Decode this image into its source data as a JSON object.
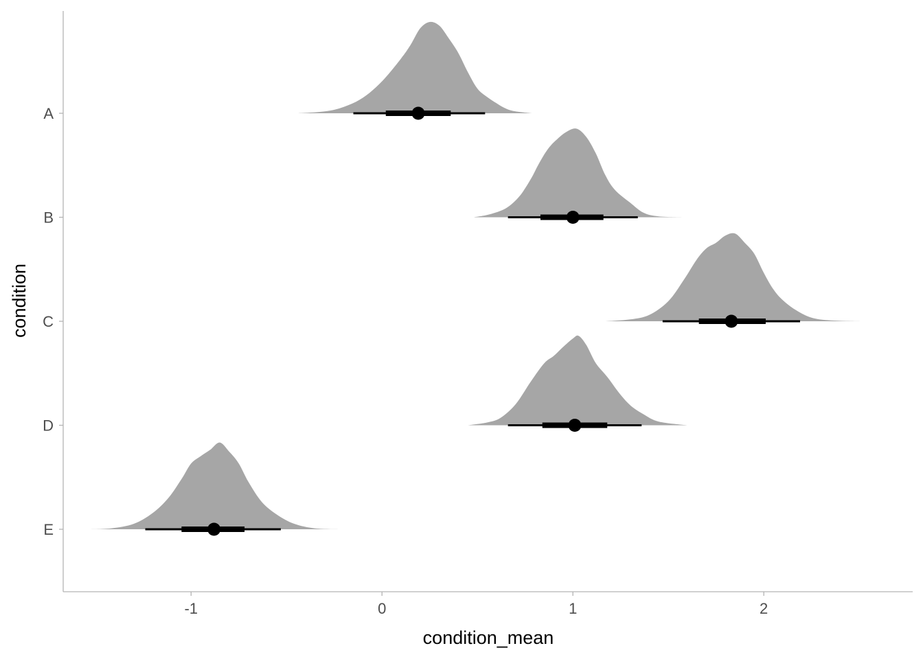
{
  "chart_data": {
    "type": "halfeye",
    "title": "",
    "xlabel": "condition_mean",
    "ylabel": "condition",
    "xlim": [
      -1.67,
      2.78
    ],
    "x_ticks": [
      -1,
      0,
      1,
      2
    ],
    "x_tick_labels": [
      "-1",
      "0",
      "1",
      "2"
    ],
    "categories": [
      "A",
      "B",
      "C",
      "D",
      "E"
    ],
    "grid": false,
    "legend": "none",
    "fill_color": "#a6a6a6",
    "interval_color": "#000000",
    "series": [
      {
        "category": "A",
        "point": 0.19,
        "interval_66": [
          0.02,
          0.36
        ],
        "interval_95": [
          -0.15,
          0.54
        ],
        "density": [
          [
            -0.44,
            0.0
          ],
          [
            -0.3,
            0.02
          ],
          [
            -0.2,
            0.07
          ],
          [
            -0.1,
            0.17
          ],
          [
            0.0,
            0.35
          ],
          [
            0.1,
            0.6
          ],
          [
            0.15,
            0.75
          ],
          [
            0.2,
            0.93
          ],
          [
            0.25,
            1.0
          ],
          [
            0.3,
            0.96
          ],
          [
            0.35,
            0.82
          ],
          [
            0.4,
            0.66
          ],
          [
            0.45,
            0.45
          ],
          [
            0.5,
            0.27
          ],
          [
            0.55,
            0.18
          ],
          [
            0.6,
            0.11
          ],
          [
            0.65,
            0.05
          ],
          [
            0.7,
            0.02
          ],
          [
            0.79,
            0.0
          ]
        ]
      },
      {
        "category": "B",
        "point": 1.0,
        "interval_66": [
          0.83,
          1.16
        ],
        "interval_95": [
          0.66,
          1.34
        ],
        "density": [
          [
            0.48,
            0.0
          ],
          [
            0.56,
            0.03
          ],
          [
            0.65,
            0.1
          ],
          [
            0.72,
            0.23
          ],
          [
            0.78,
            0.42
          ],
          [
            0.82,
            0.58
          ],
          [
            0.87,
            0.75
          ],
          [
            0.92,
            0.86
          ],
          [
            0.97,
            0.94
          ],
          [
            1.02,
            0.97
          ],
          [
            1.07,
            0.88
          ],
          [
            1.12,
            0.7
          ],
          [
            1.17,
            0.46
          ],
          [
            1.22,
            0.3
          ],
          [
            1.3,
            0.16
          ],
          [
            1.37,
            0.05
          ],
          [
            1.45,
            0.01
          ],
          [
            1.59,
            0.0
          ]
        ]
      },
      {
        "category": "C",
        "point": 1.83,
        "interval_66": [
          1.66,
          2.01
        ],
        "interval_95": [
          1.47,
          2.19
        ],
        "density": [
          [
            1.17,
            0.0
          ],
          [
            1.3,
            0.02
          ],
          [
            1.4,
            0.07
          ],
          [
            1.5,
            0.22
          ],
          [
            1.58,
            0.45
          ],
          [
            1.65,
            0.68
          ],
          [
            1.7,
            0.8
          ],
          [
            1.75,
            0.86
          ],
          [
            1.8,
            0.94
          ],
          [
            1.85,
            0.96
          ],
          [
            1.9,
            0.86
          ],
          [
            1.95,
            0.74
          ],
          [
            2.0,
            0.53
          ],
          [
            2.05,
            0.35
          ],
          [
            2.1,
            0.23
          ],
          [
            2.17,
            0.12
          ],
          [
            2.25,
            0.04
          ],
          [
            2.35,
            0.01
          ],
          [
            2.52,
            0.0
          ]
        ]
      },
      {
        "category": "D",
        "point": 1.01,
        "interval_66": [
          0.84,
          1.18
        ],
        "interval_95": [
          0.66,
          1.36
        ],
        "density": [
          [
            0.45,
            0.0
          ],
          [
            0.55,
            0.03
          ],
          [
            0.62,
            0.08
          ],
          [
            0.7,
            0.23
          ],
          [
            0.78,
            0.48
          ],
          [
            0.85,
            0.68
          ],
          [
            0.9,
            0.76
          ],
          [
            0.95,
            0.86
          ],
          [
            1.0,
            0.95
          ],
          [
            1.03,
            0.98
          ],
          [
            1.07,
            0.88
          ],
          [
            1.12,
            0.68
          ],
          [
            1.18,
            0.53
          ],
          [
            1.24,
            0.36
          ],
          [
            1.3,
            0.22
          ],
          [
            1.37,
            0.12
          ],
          [
            1.45,
            0.04
          ],
          [
            1.6,
            0.0
          ]
        ]
      },
      {
        "category": "E",
        "point": -0.88,
        "interval_66": [
          -1.05,
          -0.72
        ],
        "interval_95": [
          -1.24,
          -0.53
        ],
        "density": [
          [
            -1.55,
            0.0
          ],
          [
            -1.42,
            0.01
          ],
          [
            -1.3,
            0.06
          ],
          [
            -1.2,
            0.18
          ],
          [
            -1.12,
            0.34
          ],
          [
            -1.05,
            0.55
          ],
          [
            -1.0,
            0.72
          ],
          [
            -0.95,
            0.8
          ],
          [
            -0.9,
            0.87
          ],
          [
            -0.85,
            0.95
          ],
          [
            -0.8,
            0.85
          ],
          [
            -0.75,
            0.72
          ],
          [
            -0.7,
            0.52
          ],
          [
            -0.63,
            0.3
          ],
          [
            -0.55,
            0.16
          ],
          [
            -0.46,
            0.06
          ],
          [
            -0.35,
            0.01
          ],
          [
            -0.2,
            0.0
          ]
        ]
      }
    ]
  }
}
